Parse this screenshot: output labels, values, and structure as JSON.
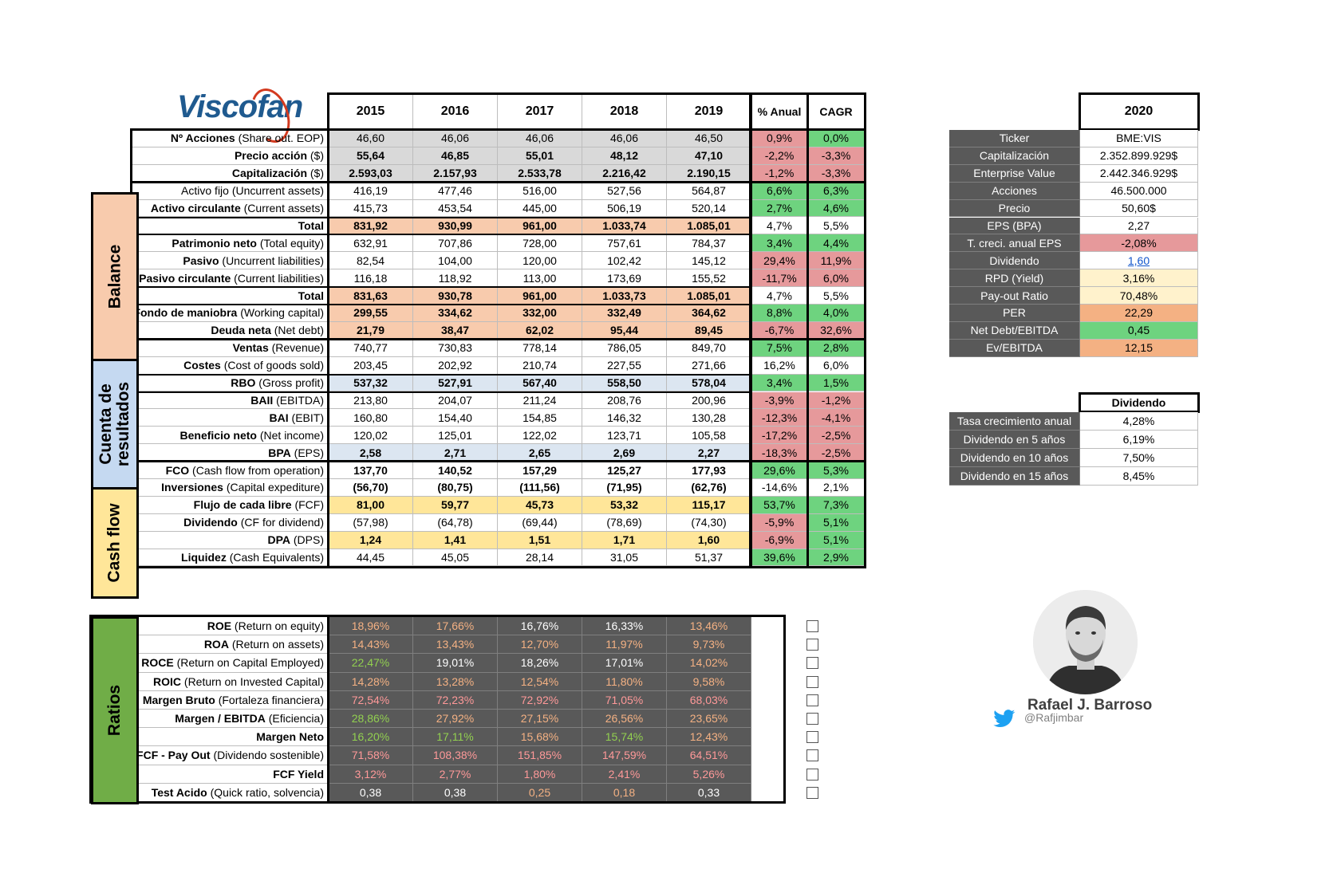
{
  "logo": {
    "text": "Viscofan"
  },
  "years": [
    "2015",
    "2016",
    "2017",
    "2018",
    "2019"
  ],
  "extra_headers": {
    "anual": "% Anual",
    "cagr": "CAGR"
  },
  "sections": {
    "balance": "Balance",
    "cuenta": "Cuenta de resultados",
    "cash": "Cash flow",
    "ratios": "Ratios"
  },
  "rows": [
    {
      "bold": "Nº Acciones",
      "sub": " (Share out. EOP)",
      "values": [
        "46,60",
        "46,06",
        "46,06",
        "46,06",
        "46,50"
      ],
      "anual": "0,9%",
      "cagr": "0,0%"
    },
    {
      "bold": "Precio acción",
      "sub": " ($)",
      "values": [
        "55,64",
        "46,85",
        "55,01",
        "48,12",
        "47,10"
      ],
      "anual": "-2,2%",
      "cagr": "-3,3%"
    },
    {
      "bold": "Capitalización",
      "sub": " ($)",
      "values": [
        "2.593,03",
        "2.157,93",
        "2.533,78",
        "2.216,42",
        "2.190,15"
      ],
      "anual": "-1,2%",
      "cagr": "-3,3%"
    },
    {
      "bold": "",
      "sub": "Activo fijo (Uncurrent assets)",
      "values": [
        "416,19",
        "477,46",
        "516,00",
        "527,56",
        "564,87"
      ],
      "anual": "6,6%",
      "cagr": "6,3%"
    },
    {
      "bold": "Activo circulante",
      "sub": " (Current assets)",
      "values": [
        "415,73",
        "453,54",
        "445,00",
        "506,19",
        "520,14"
      ],
      "anual": "2,7%",
      "cagr": "4,6%"
    },
    {
      "bold": "Total",
      "sub": "",
      "values": [
        "831,92",
        "930,99",
        "961,00",
        "1.033,74",
        "1.085,01"
      ],
      "anual": "4,7%",
      "cagr": "5,5%"
    },
    {
      "bold": "Patrimonio neto",
      "sub": " (Total equity)",
      "values": [
        "632,91",
        "707,86",
        "728,00",
        "757,61",
        "784,37"
      ],
      "anual": "3,4%",
      "cagr": "4,4%"
    },
    {
      "bold": "Pasivo",
      "sub": " (Uncurrent liabilities)",
      "values": [
        "82,54",
        "104,00",
        "120,00",
        "102,42",
        "145,12"
      ],
      "anual": "29,4%",
      "cagr": "11,9%"
    },
    {
      "bold": "Pasivo circulante",
      "sub": " (Current liabilities)",
      "values": [
        "116,18",
        "118,92",
        "113,00",
        "173,69",
        "155,52"
      ],
      "anual": "-11,7%",
      "cagr": "6,0%"
    },
    {
      "bold": "Total",
      "sub": "",
      "values": [
        "831,63",
        "930,78",
        "961,00",
        "1.033,73",
        "1.085,01"
      ],
      "anual": "4,7%",
      "cagr": "5,5%"
    },
    {
      "bold": "Fondo de maniobra",
      "sub": " (Working capital)",
      "values": [
        "299,55",
        "334,62",
        "332,00",
        "332,49",
        "364,62"
      ],
      "anual": "8,8%",
      "cagr": "4,0%"
    },
    {
      "bold": "Deuda neta",
      "sub": " (Net debt)",
      "values": [
        "21,79",
        "38,47",
        "62,02",
        "95,44",
        "89,45"
      ],
      "anual": "-6,7%",
      "cagr": "32,6%"
    },
    {
      "bold": "Ventas",
      "sub": " (Revenue)",
      "values": [
        "740,77",
        "730,83",
        "778,14",
        "786,05",
        "849,70"
      ],
      "anual": "7,5%",
      "cagr": "2,8%"
    },
    {
      "bold": "Costes",
      "sub": " (Cost of goods sold)",
      "values": [
        "203,45",
        "202,92",
        "210,74",
        "227,55",
        "271,66"
      ],
      "anual": "16,2%",
      "cagr": "6,0%"
    },
    {
      "bold": "RBO",
      "sub": " (Gross profit)",
      "values": [
        "537,32",
        "527,91",
        "567,40",
        "558,50",
        "578,04"
      ],
      "anual": "3,4%",
      "cagr": "1,5%"
    },
    {
      "bold": "BAII",
      "sub": " (EBITDA)",
      "values": [
        "213,80",
        "204,07",
        "211,24",
        "208,76",
        "200,96"
      ],
      "anual": "-3,9%",
      "cagr": "-1,2%"
    },
    {
      "bold": "BAI",
      "sub": " (EBIT)",
      "values": [
        "160,80",
        "154,40",
        "154,85",
        "146,32",
        "130,28"
      ],
      "anual": "-12,3%",
      "cagr": "-4,1%"
    },
    {
      "bold": "Beneficio neto",
      "sub": " (Net income)",
      "values": [
        "120,02",
        "125,01",
        "122,02",
        "123,71",
        "105,58"
      ],
      "anual": "-17,2%",
      "cagr": "-2,5%"
    },
    {
      "bold": "BPA",
      "sub": " (EPS)",
      "values": [
        "2,58",
        "2,71",
        "2,65",
        "2,69",
        "2,27"
      ],
      "anual": "-18,3%",
      "cagr": "-2,5%"
    },
    {
      "bold": "FCO",
      "sub": " (Cash flow from operation)",
      "values": [
        "137,70",
        "140,52",
        "157,29",
        "125,27",
        "177,93"
      ],
      "anual": "29,6%",
      "cagr": "5,3%"
    },
    {
      "bold": "Inversiones",
      "sub": " (Capital expediture)",
      "values": [
        "(56,70)",
        "(80,75)",
        "(111,56)",
        "(71,95)",
        "(62,76)"
      ],
      "anual": "-14,6%",
      "cagr": "2,1%"
    },
    {
      "bold": "Flujo de cada libre",
      "sub": " (FCF)",
      "values": [
        "81,00",
        "59,77",
        "45,73",
        "53,32",
        "115,17"
      ],
      "anual": "53,7%",
      "cagr": "7,3%"
    },
    {
      "bold": "Dividendo",
      "sub": " (CF for dividend)",
      "values": [
        "(57,98)",
        "(64,78)",
        "(69,44)",
        "(78,69)",
        "(74,30)"
      ],
      "anual": "-5,9%",
      "cagr": "5,1%"
    },
    {
      "bold": "DPA",
      "sub": " (DPS)",
      "values": [
        "1,24",
        "1,41",
        "1,51",
        "1,71",
        "1,60"
      ],
      "anual": "-6,9%",
      "cagr": "5,1%"
    },
    {
      "bold": "Liquidez",
      "sub": " (Cash Equivalents)",
      "values": [
        "44,45",
        "45,05",
        "28,14",
        "31,05",
        "51,37"
      ],
      "anual": "39,6%",
      "cagr": "2,9%"
    }
  ],
  "ratios": [
    {
      "bold": "ROE",
      "sub": " (Return on equity)",
      "values": [
        "18,96%",
        "17,66%",
        "16,76%",
        "16,33%",
        "13,46%"
      ]
    },
    {
      "bold": "ROA",
      "sub": " (Return on assets)",
      "values": [
        "14,43%",
        "13,43%",
        "12,70%",
        "11,97%",
        "9,73%"
      ]
    },
    {
      "bold": "ROCE",
      "sub": " (Return on Capital Employed)",
      "values": [
        "22,47%",
        "19,01%",
        "18,26%",
        "17,01%",
        "14,02%"
      ]
    },
    {
      "bold": "ROIC",
      "sub": " (Return on Invested Capital)",
      "values": [
        "14,28%",
        "13,28%",
        "12,54%",
        "11,80%",
        "9,58%"
      ]
    },
    {
      "bold": "Margen Bruto",
      "sub": " (Fortaleza financiera)",
      "values": [
        "72,54%",
        "72,23%",
        "72,92%",
        "71,05%",
        "68,03%"
      ]
    },
    {
      "bold": "Margen / EBITDA",
      "sub": " (Eficiencia)",
      "values": [
        "28,86%",
        "27,92%",
        "27,15%",
        "26,56%",
        "23,65%"
      ]
    },
    {
      "bold": "Margen Neto",
      "sub": "",
      "values": [
        "16,20%",
        "17,11%",
        "15,68%",
        "15,74%",
        "12,43%"
      ]
    },
    {
      "bold": "FCF - Pay Out",
      "sub": " (Dividendo sostenible)",
      "values": [
        "71,58%",
        "108,38%",
        "151,85%",
        "147,59%",
        "64,51%"
      ]
    },
    {
      "bold": "FCF Yield",
      "sub": "",
      "values": [
        "3,12%",
        "2,77%",
        "1,80%",
        "2,41%",
        "5,26%"
      ]
    },
    {
      "bold": "Test Acido",
      "sub": " (Quick ratio, solvencia)",
      "values": [
        "0,38",
        "0,38",
        "0,25",
        "0,18",
        "0,33"
      ]
    }
  ],
  "summary": {
    "year": "2020",
    "rows": [
      {
        "label": "Ticker",
        "value": "BME:VIS"
      },
      {
        "label": "Capitalización",
        "value": "2.352.899.929$"
      },
      {
        "label": "Enterprise Value",
        "value": "2.442.346.929$"
      },
      {
        "label": "Acciones",
        "value": "46.500.000"
      },
      {
        "label": "Precio",
        "value": "50,60$"
      },
      {
        "label": "EPS (BPA)",
        "value": "2,27"
      },
      {
        "label": "T. creci. anual EPS",
        "value": "-2,08%"
      },
      {
        "label": "Dividendo",
        "value": "1,60"
      },
      {
        "label": "RPD (Yield)",
        "value": "3,16%"
      },
      {
        "label": "Pay-out Ratio",
        "value": "70,48%"
      },
      {
        "label": "PER",
        "value": "22,29"
      },
      {
        "label": "Net Debt/EBITDA",
        "value": "0,45"
      },
      {
        "label": "Ev/EBITDA",
        "value": "12,15"
      }
    ]
  },
  "dividend": {
    "title": "Dividendo",
    "rows": [
      {
        "label": "Tasa crecimiento anual",
        "value": "4,28%"
      },
      {
        "label": "Dividendo en 5 años",
        "value": "6,19%"
      },
      {
        "label": "Dividendo en 10 años",
        "value": "7,50%"
      },
      {
        "label": "Dividendo en 15 años",
        "value": "8,45%"
      }
    ]
  },
  "author": {
    "name": "Rafael J. Barroso",
    "handle": "@Rafjimbar",
    "icon": "twitter-bird-icon"
  },
  "colors": {
    "gray": "#d9d9d9",
    "orange": "#f8cbad",
    "blue": "#dce6f1",
    "yellow": "#ffe699",
    "red": "#e6999b",
    "green": "#6ed37f",
    "white": "#ffffff",
    "section_balance": "#f8cbad",
    "section_cuenta": "#c5d9f1",
    "section_cash": "#ffe699",
    "section_ratios": "#70ad47",
    "ratio_orange": "#f4b183",
    "ratio_pink": "#ff9999",
    "ratio_green": "#92d050",
    "ratio_white": "#ffffff"
  }
}
